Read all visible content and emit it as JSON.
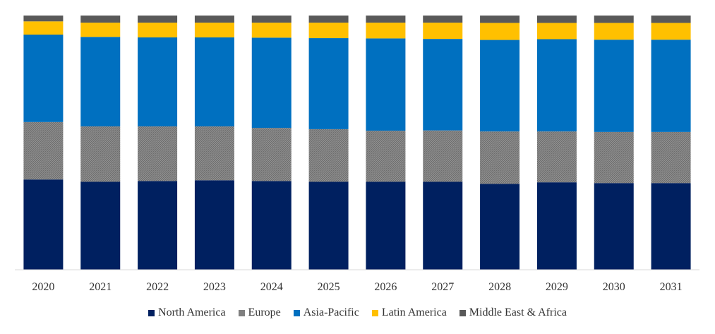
{
  "chart_data": {
    "type": "bar",
    "stacked": true,
    "normalized": true,
    "title": "",
    "xlabel": "",
    "ylabel": "",
    "ylim": [
      0,
      100
    ],
    "categories": [
      "2020",
      "2021",
      "2022",
      "2023",
      "2024",
      "2025",
      "2026",
      "2027",
      "2028",
      "2029",
      "2030",
      "2031"
    ],
    "series": [
      {
        "name": "North America",
        "color": "#002060",
        "values": [
          35.5,
          34.6,
          34.9,
          35.2,
          34.9,
          34.6,
          34.6,
          34.6,
          33.8,
          34.4,
          34.1,
          34.1
        ]
      },
      {
        "name": "Europe",
        "color": "#808080",
        "pattern": "hatch",
        "values": [
          22.6,
          21.8,
          21.5,
          21.2,
          20.9,
          20.7,
          20.1,
          20.2,
          20.6,
          20.0,
          20.1,
          20.1
        ]
      },
      {
        "name": "Asia-Pacific",
        "color": "#0070C0",
        "values": [
          34.4,
          35.2,
          35.0,
          35.0,
          35.5,
          35.8,
          36.3,
          36.0,
          36.0,
          36.3,
          36.3,
          36.3
        ]
      },
      {
        "name": "Latin America",
        "color": "#FFC000",
        "values": [
          5.2,
          5.6,
          5.8,
          5.8,
          5.9,
          6.1,
          6.2,
          6.4,
          6.7,
          6.4,
          6.6,
          6.6
        ]
      },
      {
        "name": "Middle East & Africa",
        "color": "#595959",
        "values": [
          2.3,
          2.8,
          2.8,
          2.8,
          2.8,
          2.8,
          2.8,
          2.8,
          2.9,
          2.9,
          2.9,
          2.9
        ]
      }
    ]
  }
}
